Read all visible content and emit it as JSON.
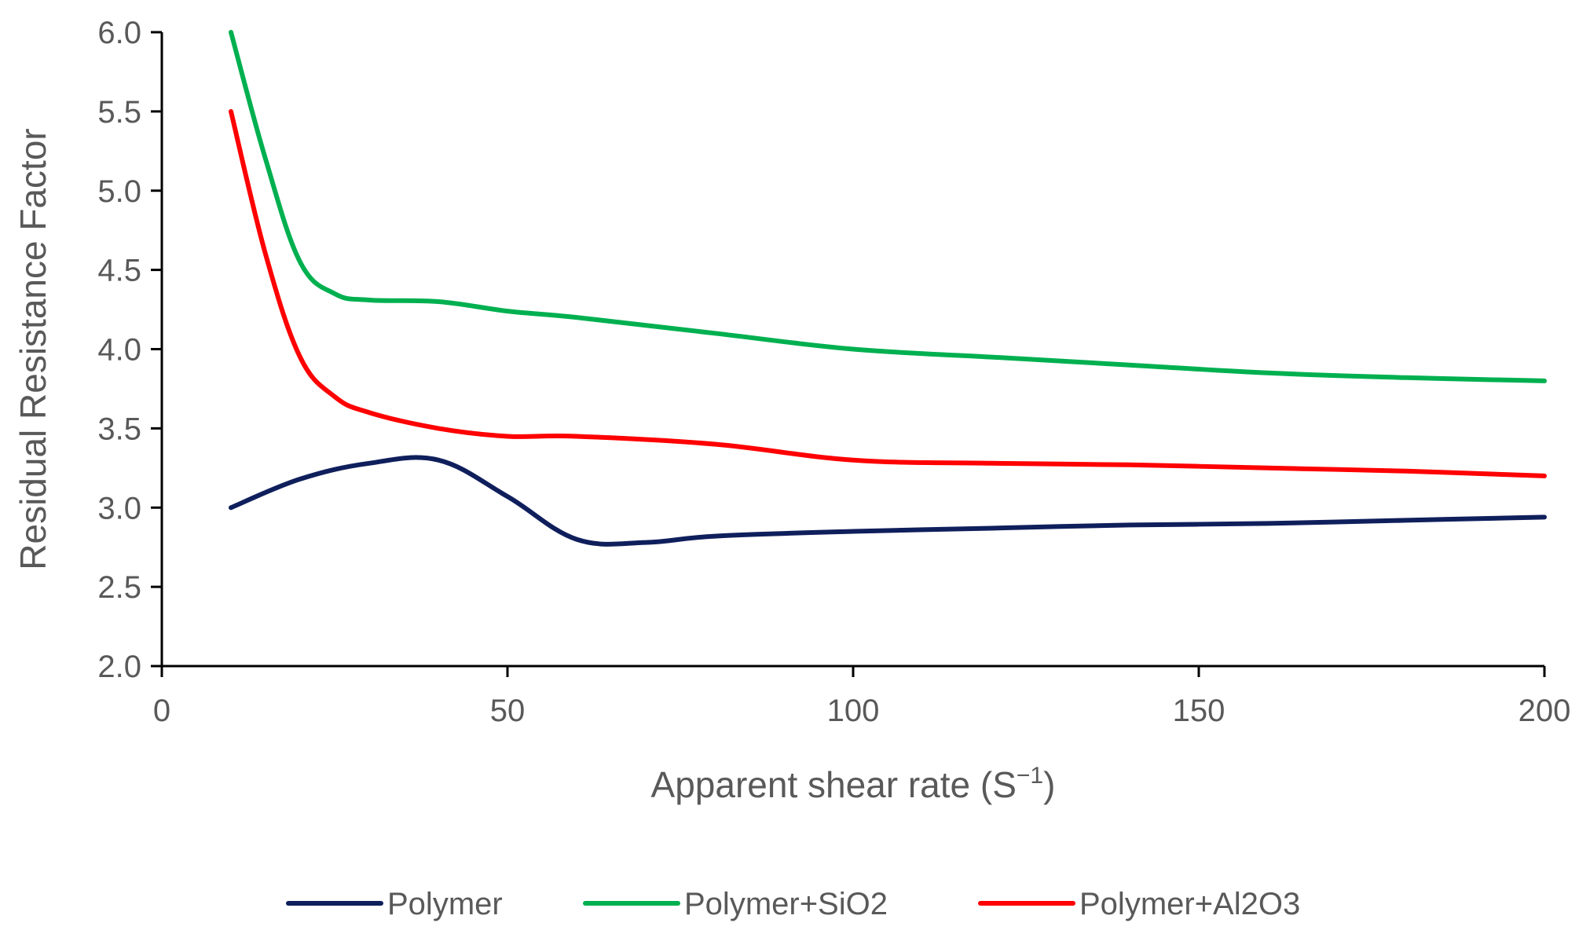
{
  "chart_data": {
    "type": "line",
    "title": "",
    "xlabel": "Apparent shear rate (S",
    "xlabel_sup": "−1",
    "xlabel_end": ")",
    "ylabel": "Residual Resistance Factor",
    "xlim": [
      0,
      200
    ],
    "ylim": [
      2.0,
      6.0
    ],
    "x_ticks": [
      0,
      50,
      100,
      150,
      200
    ],
    "x_tick_labels": [
      "0",
      "50",
      "100",
      "150",
      "200"
    ],
    "y_ticks": [
      2.0,
      2.5,
      3.0,
      3.5,
      4.0,
      4.5,
      5.0,
      5.5,
      6.0
    ],
    "y_tick_labels": [
      "2.0",
      "2.5",
      "3.0",
      "3.5",
      "4.0",
      "4.5",
      "5.0",
      "5.5",
      "6.0"
    ],
    "grid": false,
    "legend_position": "bottom",
    "series": [
      {
        "name": "Polymer",
        "color": "#0f1f5c",
        "x": [
          10,
          20,
          30,
          40,
          50,
          60,
          70,
          80,
          100,
          120,
          140,
          160,
          180,
          200
        ],
        "y": [
          3.0,
          3.18,
          3.28,
          3.3,
          3.07,
          2.8,
          2.78,
          2.82,
          2.85,
          2.87,
          2.89,
          2.9,
          2.92,
          2.94
        ]
      },
      {
        "name": "Polymer+SiO2",
        "color": "#00b050",
        "x": [
          10,
          15,
          20,
          25,
          30,
          40,
          50,
          60,
          80,
          100,
          120,
          140,
          160,
          180,
          200
        ],
        "y": [
          6.0,
          5.2,
          4.55,
          4.35,
          4.31,
          4.3,
          4.24,
          4.2,
          4.1,
          4.0,
          3.95,
          3.9,
          3.85,
          3.82,
          3.8
        ]
      },
      {
        "name": "Polymer+Al2O3",
        "color": "#ff0000",
        "x": [
          10,
          15,
          20,
          25,
          30,
          40,
          50,
          60,
          80,
          100,
          120,
          140,
          160,
          180,
          200
        ],
        "y": [
          5.5,
          4.6,
          3.95,
          3.7,
          3.6,
          3.5,
          3.45,
          3.45,
          3.4,
          3.3,
          3.28,
          3.27,
          3.25,
          3.23,
          3.2
        ]
      }
    ]
  }
}
